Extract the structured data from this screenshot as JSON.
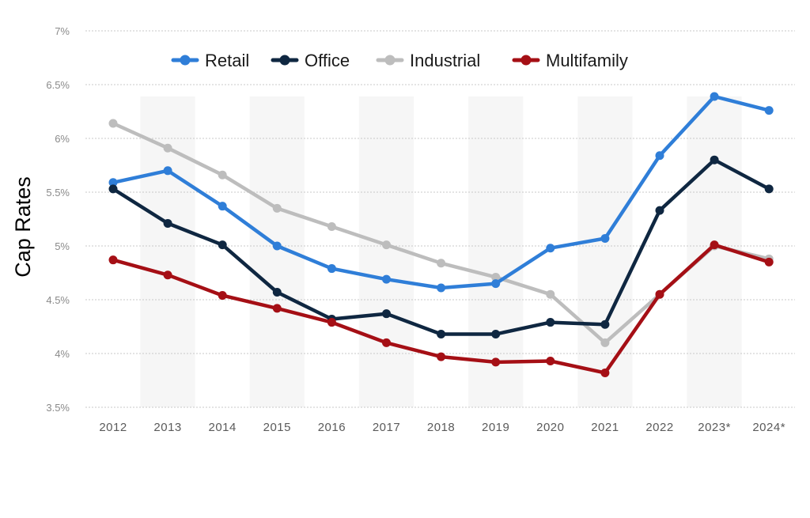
{
  "chart_data": {
    "type": "line",
    "title": "",
    "xlabel": "",
    "ylabel": "Cap Rates",
    "categories": [
      "2012",
      "2013",
      "2014",
      "2015",
      "2016",
      "2017",
      "2018",
      "2019",
      "2020",
      "2021",
      "2022",
      "2023*",
      "2024*"
    ],
    "yticks": [
      "3.5%",
      "4%",
      "4.5%",
      "5%",
      "5.5%",
      "6%",
      "6.5%",
      "7%"
    ],
    "ylim": [
      3.5,
      7.0
    ],
    "grid": true,
    "legend_position": "top",
    "series": [
      {
        "name": "Retail",
        "color": "#2f7ed8",
        "values": [
          5.59,
          5.7,
          5.37,
          5.0,
          4.79,
          4.69,
          4.61,
          4.65,
          4.98,
          5.07,
          5.84,
          6.39,
          6.26
        ]
      },
      {
        "name": "Office",
        "color": "#0f2741",
        "values": [
          5.53,
          5.21,
          5.01,
          4.57,
          4.32,
          4.37,
          4.18,
          4.18,
          4.29,
          4.27,
          5.33,
          5.8,
          5.53
        ]
      },
      {
        "name": "Industrial",
        "color": "#bdbdbd",
        "values": [
          6.14,
          5.91,
          5.66,
          5.35,
          5.18,
          5.01,
          4.84,
          4.71,
          4.55,
          4.1,
          4.55,
          5.0,
          4.88
        ]
      },
      {
        "name": "Multifamily",
        "color": "#a50f15",
        "values": [
          4.87,
          4.73,
          4.54,
          4.42,
          4.29,
          4.1,
          3.97,
          3.92,
          3.93,
          3.82,
          4.55,
          5.01,
          4.85
        ]
      }
    ]
  }
}
